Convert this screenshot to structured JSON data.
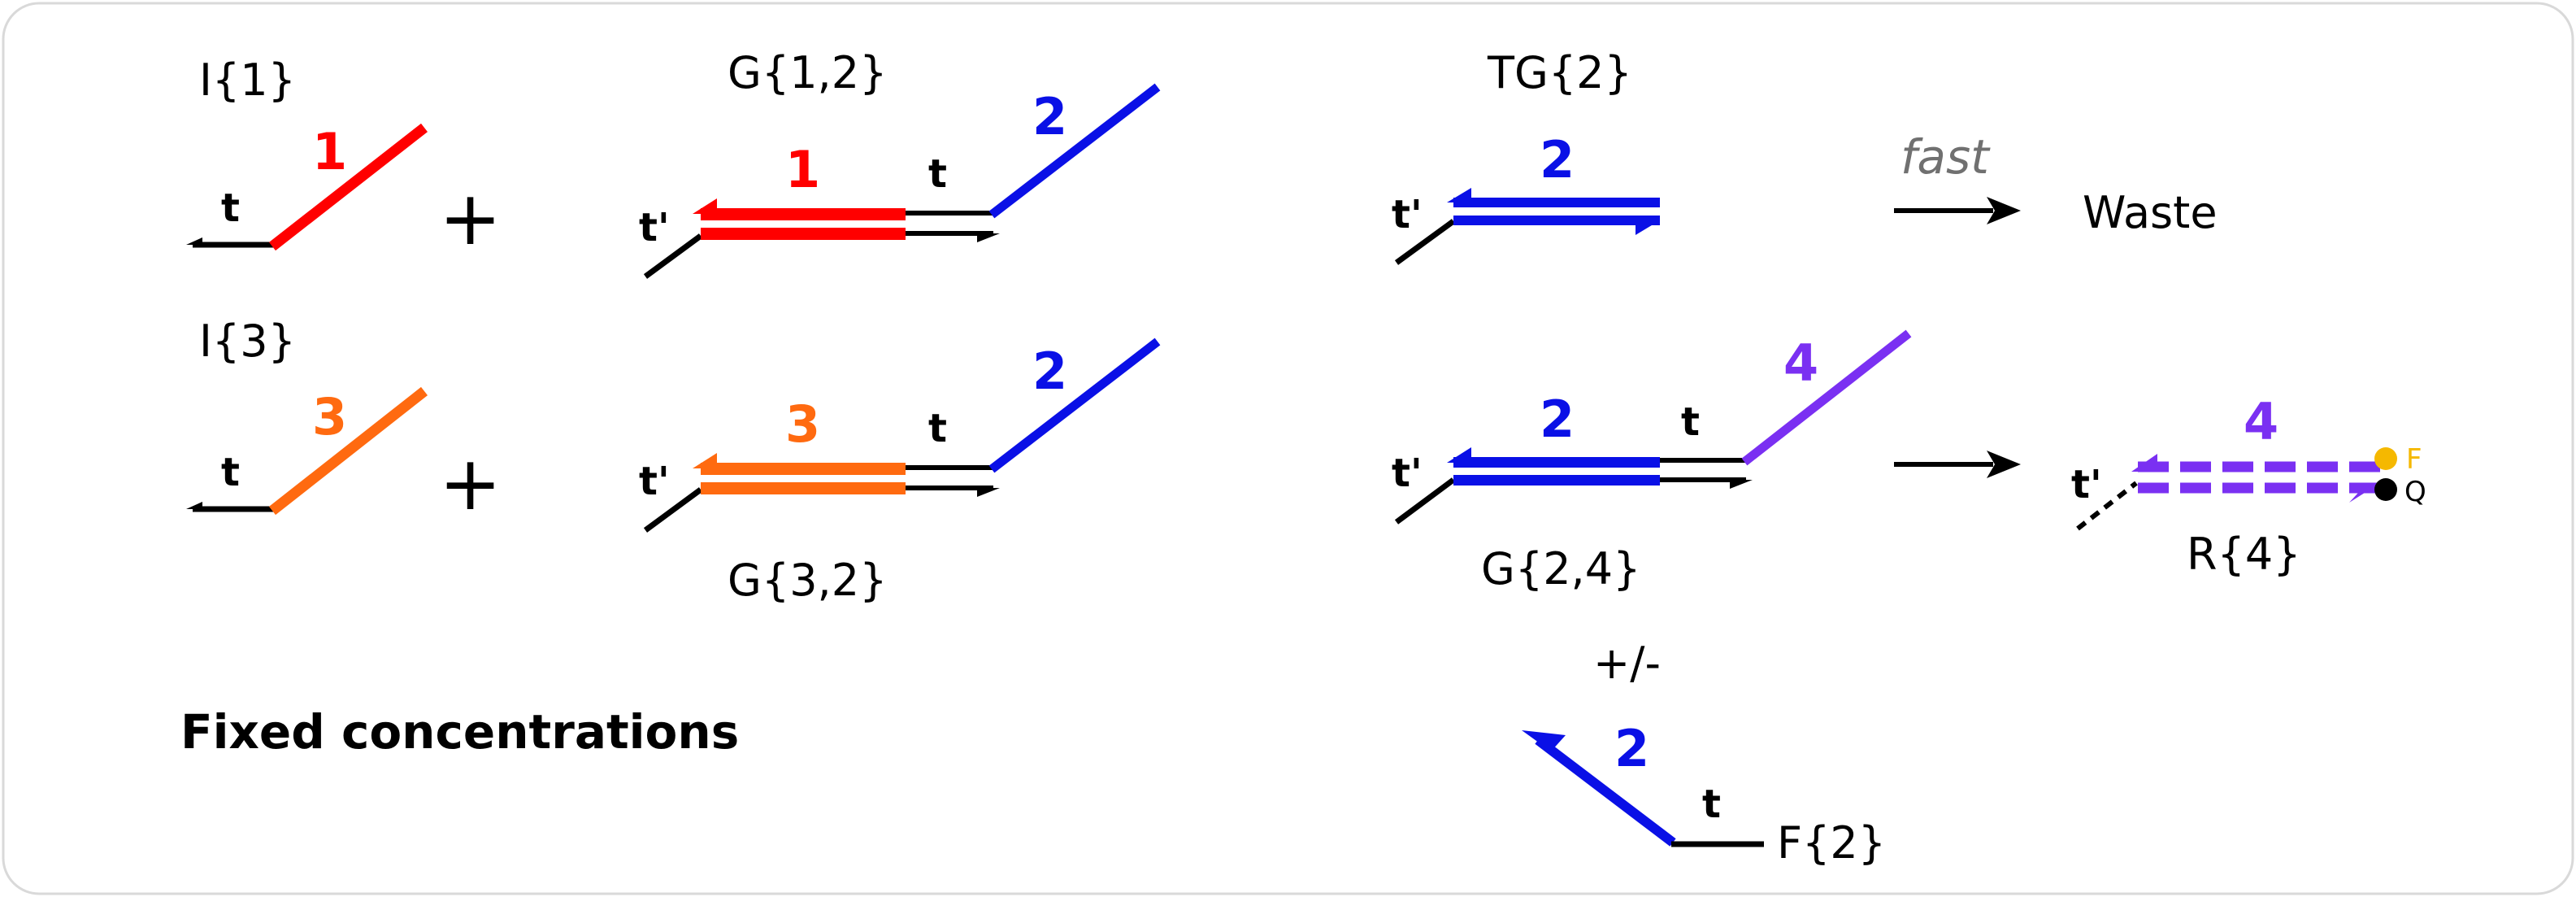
{
  "colors": {
    "red": "#ff0000",
    "orange": "#ff6a10",
    "blue": "#0a10e6",
    "purple": "#7a30f2",
    "black": "#000000",
    "gray": "#707070",
    "fluor": "#f5b800",
    "quencher": "#000000"
  },
  "labels": {
    "i1": "I{1}",
    "i3": "I{3}",
    "g12": "G{1,2}",
    "g32": "G{3,2}",
    "tg2": "TG{2}",
    "g24": "G{2,4}",
    "r4": "R{4}",
    "f2": "F{2}",
    "waste": "Waste",
    "fast": "fast",
    "plus": "+",
    "plus_minus": "+/-",
    "fixed": "Fixed concentrations"
  },
  "domains": {
    "one": "1",
    "two": "2",
    "three": "3",
    "four": "4",
    "t": "t",
    "t_prime": "t'",
    "f_marker": "F",
    "q_marker": "Q"
  },
  "icons": {
    "arrow": "right-arrow-icon",
    "fluorophore": "circle-icon",
    "quencher": "circle-icon"
  }
}
